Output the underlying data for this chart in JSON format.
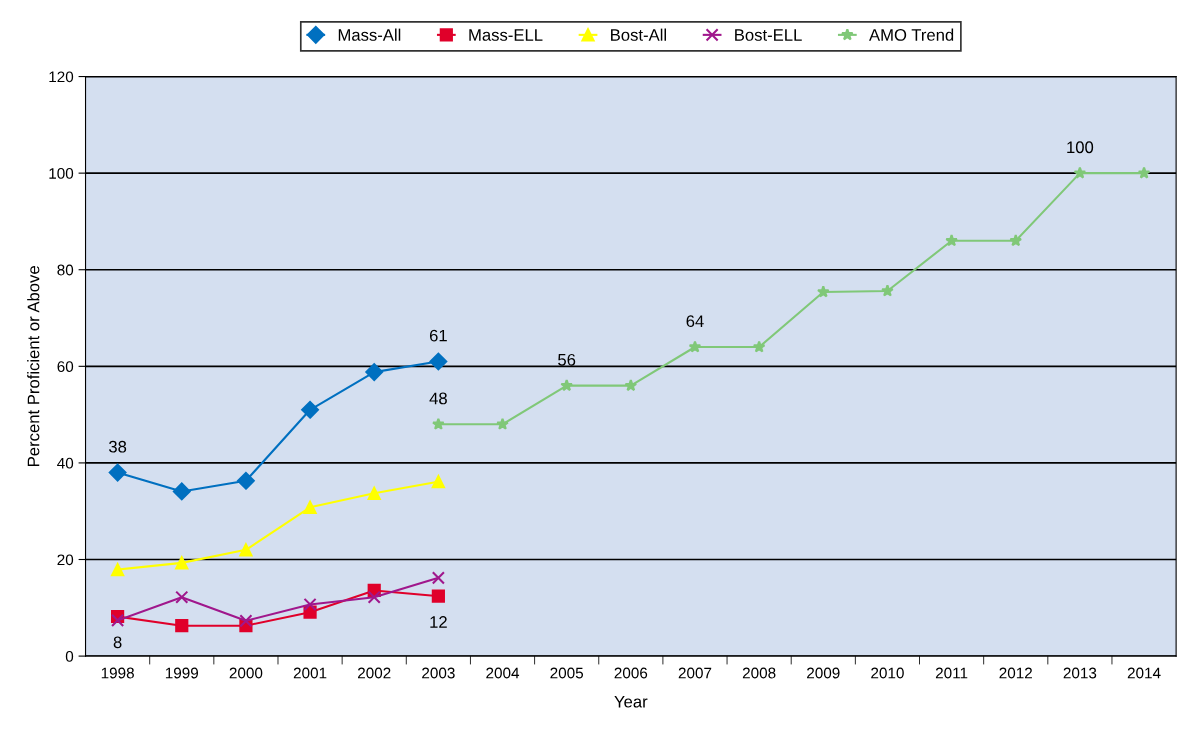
{
  "chart_data": {
    "type": "line",
    "xlabel": "Year",
    "ylabel": "Percent Proficient or Above",
    "categories": [
      "1998",
      "1999",
      "2000",
      "2001",
      "2002",
      "2003",
      "2004",
      "2005",
      "2006",
      "2007",
      "2008",
      "2009",
      "2010",
      "2011",
      "2012",
      "2013",
      "2014"
    ],
    "series": [
      {
        "name": "Mass-All",
        "color": "#0070c0",
        "marker": "diamond",
        "values": [
          38.0,
          34.1,
          36.3,
          51.0,
          58.8,
          61,
          null,
          null,
          null,
          null,
          null,
          null,
          null,
          null,
          null,
          null,
          null
        ],
        "value_labels": [
          "38",
          null,
          null,
          null,
          null,
          "61",
          null,
          null,
          null,
          null,
          null,
          null,
          null,
          null,
          null,
          null,
          null
        ]
      },
      {
        "name": "Mass-ELL",
        "color": "#e0002a",
        "marker": "square",
        "values": [
          8.2,
          6.3,
          6.3,
          9.1,
          13.6,
          12.4,
          null,
          null,
          null,
          null,
          null,
          null,
          null,
          null,
          null,
          null,
          null
        ],
        "value_labels": [
          "8",
          null,
          null,
          null,
          null,
          "12",
          null,
          null,
          null,
          null,
          null,
          null,
          null,
          null,
          null,
          null,
          null
        ]
      },
      {
        "name": "Bost-All",
        "color": "#ffff00",
        "marker": "triangle",
        "values": [
          17.9,
          19.3,
          22.0,
          30.8,
          33.7,
          36.1,
          null,
          null,
          null,
          null,
          null,
          null,
          null,
          null,
          null,
          null,
          null
        ]
      },
      {
        "name": "Bost-ELL",
        "color": "#a0178c",
        "marker": "cross",
        "values": [
          7.4,
          12.2,
          7.3,
          10.7,
          12.2,
          16.2,
          null,
          null,
          null,
          null,
          null,
          null,
          null,
          null,
          null,
          null,
          null
        ]
      },
      {
        "name": "AMO Trend",
        "color": "#80c878",
        "marker": "star",
        "values": [
          null,
          null,
          null,
          null,
          null,
          48,
          48,
          56,
          56,
          64,
          64,
          75.4,
          75.6,
          86,
          86,
          100,
          100
        ],
        "value_labels": [
          null,
          null,
          null,
          null,
          null,
          "48",
          null,
          "56",
          null,
          "64",
          null,
          null,
          null,
          null,
          null,
          "100",
          null
        ]
      }
    ],
    "ylim": [
      0,
      120
    ],
    "yticks": [
      0,
      20,
      40,
      60,
      80,
      100,
      120
    ],
    "grid": "y",
    "legend": "top"
  }
}
